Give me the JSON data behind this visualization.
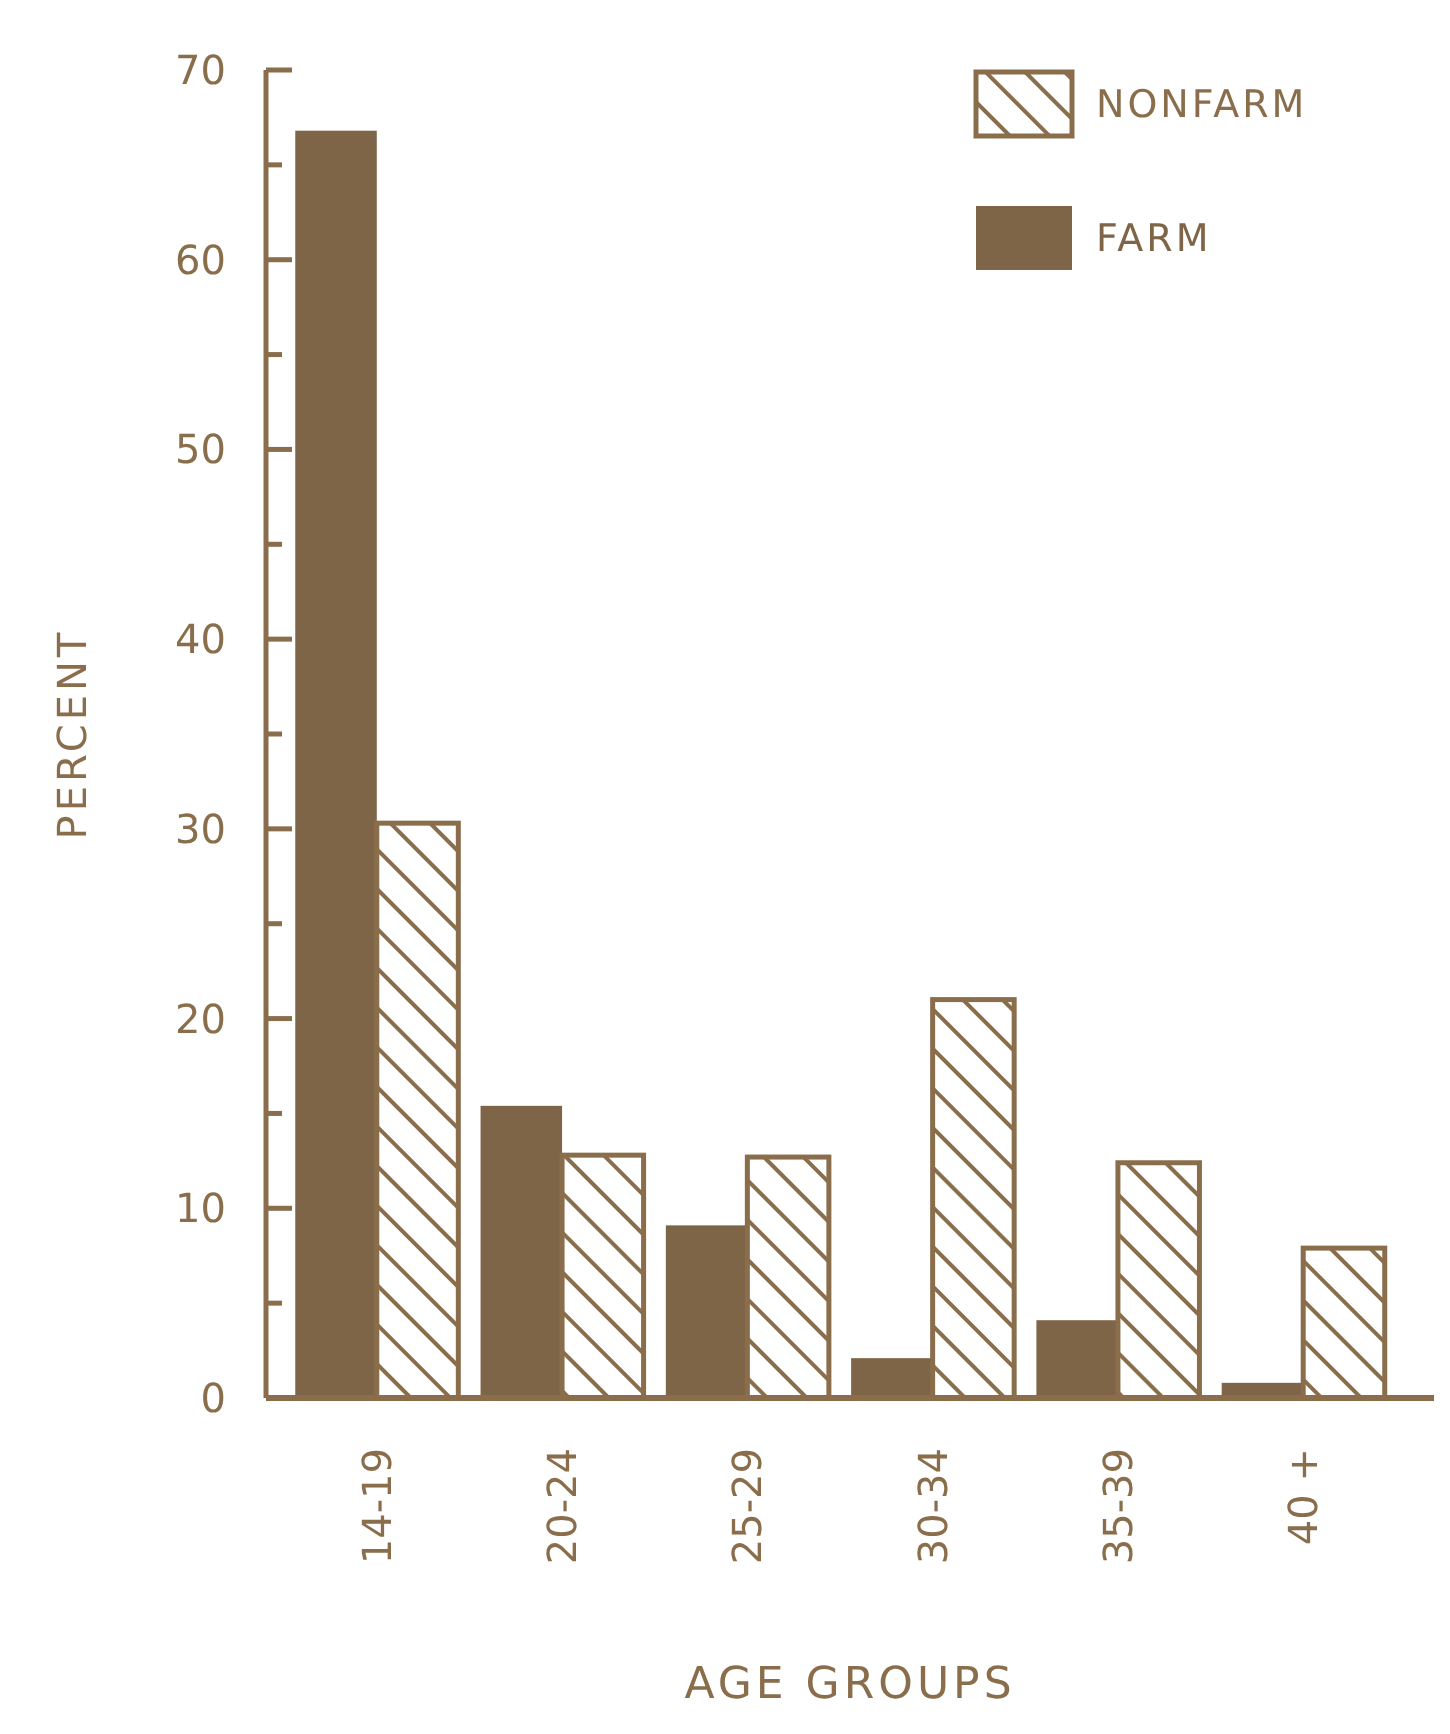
{
  "chart_data": {
    "type": "bar",
    "xlabel": "AGE GROUPS",
    "ylabel": "PERCENT",
    "categories": [
      "14-19",
      "20-24",
      "25-29",
      "30-34",
      "35-39",
      "40 +"
    ],
    "series": [
      {
        "name": "FARM",
        "color": "#7f6547",
        "values": [
          66.8,
          15.4,
          9.1,
          2.1,
          4.1,
          0.8
        ]
      },
      {
        "name": "NONFARM",
        "color": "#8a6e4c",
        "values": [
          30.3,
          12.8,
          12.7,
          21,
          12.4,
          7.9
        ]
      }
    ],
    "ylim": [
      0,
      70
    ],
    "yticks": [
      0,
      {
        "value": 5,
        "label": null
      },
      10,
      {
        "value": 15,
        "label": null
      },
      20,
      {
        "value": 25,
        "label": null
      },
      30,
      {
        "value": 35,
        "label": null
      },
      40,
      {
        "value": 45,
        "label": null
      },
      50,
      {
        "value": 55,
        "label": null
      },
      60,
      {
        "value": 65,
        "label": null
      },
      70
    ],
    "legend": "top right",
    "grid": false
  }
}
